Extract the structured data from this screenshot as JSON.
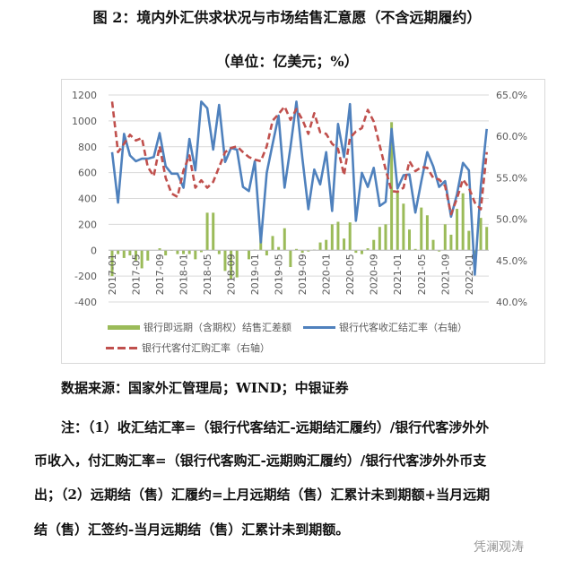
{
  "header": {
    "title": "图 2：境内外汇供求状况与市场结售汇意愿（不含远期履约）",
    "unit": "（单位：亿美元；%）"
  },
  "chart_data": {
    "type": "bar+line",
    "title": "图 2：境内外汇供求状况与市场结售汇意愿（不含远期履约）",
    "subtitle": "（单位：亿美元；%）",
    "x_start": "2017-01",
    "x_end": "2022-04",
    "x_frequency": "monthly",
    "x_tick_labels": [
      "2017-01",
      "2017-05",
      "2017-09",
      "2018-01",
      "2018-05",
      "2018-09",
      "2019-01",
      "2019-05",
      "2019-09",
      "2020-01",
      "2020-05",
      "2020-09",
      "2021-01",
      "2021-05",
      "2021-09",
      "2022-01"
    ],
    "y_left": {
      "ylim": [
        -400,
        1200
      ],
      "ticks": [
        "1200",
        "1000",
        "800",
        "600",
        "400",
        "200",
        "0",
        "-200",
        "-400"
      ]
    },
    "y_right": {
      "ylim": [
        40,
        65
      ],
      "ticks": [
        "65.0%",
        "60.0%",
        "55.0%",
        "50.0%",
        "45.0%",
        "40.0%"
      ]
    },
    "grid": true,
    "legend_position": "bottom",
    "series": [
      {
        "name": "银行即远期（含期权）结售汇差额",
        "type": "bar",
        "axis": "left",
        "color": "#9bbb59",
        "values": [
          -200,
          -30,
          -60,
          -40,
          -80,
          -140,
          -80,
          0,
          15,
          -40,
          -5,
          -30,
          -30,
          -30,
          -70,
          -15,
          290,
          290,
          -30,
          -160,
          -220,
          -210,
          0,
          -70,
          5,
          100,
          -40,
          110,
          25,
          170,
          -130,
          10,
          -20,
          -10,
          5,
          60,
          80,
          200,
          220,
          90,
          215,
          -20,
          -30,
          15,
          80,
          180,
          200,
          990,
          460,
          360,
          160,
          10,
          330,
          270,
          80,
          -10,
          200,
          120,
          320,
          440,
          150,
          -40,
          250,
          180
        ]
      },
      {
        "name": "银行代客收汇结汇率（右轴）",
        "type": "line",
        "axis": "right",
        "color": "#4f81bd",
        "values": [
          58.1,
          52.0,
          60.3,
          57.7,
          57.0,
          57.3,
          57.3,
          57.5,
          60.4,
          56.4,
          55.5,
          55.5,
          53.8,
          59.7,
          55.9,
          64.2,
          63.4,
          58.4,
          63.8,
          56.9,
          58.6,
          58.4,
          53.9,
          53.4,
          57.0,
          47.2,
          55.6,
          59.1,
          62.5,
          53.8,
          58.7,
          64.2,
          57.3,
          51.2,
          56.0,
          54.2,
          58.1,
          51.0,
          61.5,
          57.5,
          63.9,
          49.8,
          55.6,
          53.9,
          56.2,
          51.6,
          52.1,
          60.9,
          53.7,
          55.3,
          55.4,
          50.8,
          54.6,
          58.1,
          56.4,
          53.9,
          54.6,
          50.3,
          53.0,
          56.8,
          55.9,
          43.3,
          54.0,
          60.9
        ]
      },
      {
        "name": "银行代客付汇购汇率（右轴）",
        "type": "line",
        "dashed": true,
        "axis": "right",
        "color": "#c0504d",
        "values": [
          64.2,
          58.1,
          59.1,
          60.2,
          59.5,
          59.8,
          56.3,
          55.2,
          58.8,
          55.0,
          53.1,
          52.7,
          55.9,
          57.7,
          53.8,
          54.7,
          53.8,
          54.5,
          56.3,
          58.1,
          58.6,
          58.8,
          58.1,
          57.5,
          57.2,
          57.0,
          58.8,
          61.9,
          62.7,
          63.6,
          62.0,
          63.3,
          62.0,
          60.3,
          62.8,
          60.5,
          60.3,
          59.1,
          58.5,
          55.3,
          59.8,
          60.6,
          61.0,
          63.2,
          61.8,
          58.9,
          56.0,
          53.4,
          53.3,
          53.8,
          57.0,
          55.8,
          56.3,
          56.2,
          55.0,
          54.8,
          54.0,
          50.6,
          52.5,
          54.8,
          53.8,
          52.0,
          51.2,
          58.1
        ]
      }
    ]
  },
  "legend": {
    "items": [
      "银行即远期（含期权）结售汇差额",
      "银行代客收汇结汇率（右轴）",
      "银行代客付汇购汇率（右轴）"
    ]
  },
  "source": "数据来源：国家外汇管理局；WIND；中银证券",
  "notes": [
    "注：（1）收汇结汇率=（银行代客结汇-远期结汇履约）/银行代客涉外外",
    "币收入，付汇购汇率=（银行代客购汇-远期购汇履约）/银行代客涉外外币支",
    "出；（2）远期结（售）汇履约=上月远期结（售）汇累计未到期额+当月远期",
    "结（售）汇签约-当月远期结（售）汇累计未到期额。"
  ],
  "watermark": "凭澜观涛"
}
